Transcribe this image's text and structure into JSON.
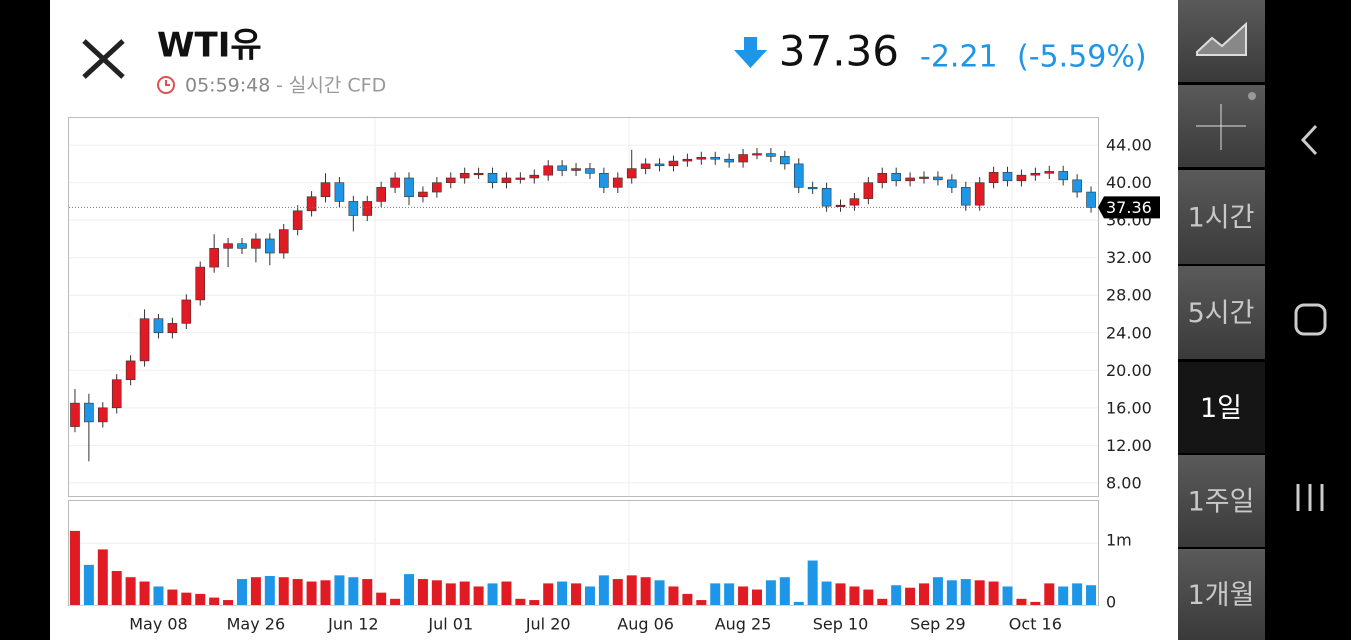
{
  "header": {
    "title": "WTI유",
    "time": "05:59:48",
    "source": "- 실시간 CFD",
    "change": "-2.21",
    "change_percent": "(-5.59%)"
  },
  "sidebar": {
    "intervals": [
      "1시간",
      "5시간",
      "1일",
      "1주일",
      "1개월"
    ]
  },
  "chart_data": {
    "type": "candlestick",
    "categories": [
      null,
      null,
      null,
      null,
      null,
      null,
      "May 08",
      null,
      null,
      null,
      null,
      null,
      null,
      "May 26",
      null,
      null,
      null,
      null,
      null,
      null,
      "Jun 12",
      null,
      null,
      null,
      null,
      null,
      null,
      "Jul 01",
      null,
      null,
      null,
      null,
      null,
      null,
      "Jul 20",
      null,
      null,
      null,
      null,
      null,
      null,
      "Aug 06",
      null,
      null,
      null,
      null,
      null,
      null,
      "Aug 25",
      null,
      null,
      null,
      null,
      null,
      null,
      "Sep 10",
      null,
      null,
      null,
      null,
      null,
      null,
      "Sep 29",
      null,
      null,
      null,
      null,
      null,
      null,
      "Oct 16",
      null,
      null,
      null,
      null
    ],
    "open": [
      14,
      16.5,
      14.5,
      16,
      19,
      21,
      25.5,
      24,
      25,
      27.5,
      31,
      33,
      33.5,
      33,
      34,
      32.5,
      35,
      37,
      38.5,
      40,
      38,
      36.5,
      38,
      39.5,
      40.5,
      38.5,
      39,
      40,
      40.5,
      41,
      41,
      40,
      40.5,
      40.5,
      40.8,
      41.8,
      41.3,
      41.5,
      41,
      39.5,
      40.5,
      41.5,
      42,
      41.8,
      42.3,
      42.5,
      42.7,
      42.5,
      42.2,
      43,
      43.1,
      42.8,
      42,
      39.5,
      39.4,
      37.5,
      37.6,
      38.3,
      40,
      41,
      40.2,
      40.5,
      40.6,
      40.3,
      39.5,
      37.6,
      40,
      41.1,
      40.2,
      40.8,
      41,
      41.2,
      40.3,
      39
    ],
    "high": [
      18,
      17.5,
      16.6,
      19.6,
      21.6,
      26.5,
      26,
      25.6,
      28.1,
      31.6,
      34.5,
      34.1,
      34.1,
      34.6,
      34.6,
      35.6,
      37.6,
      39.1,
      41,
      40.6,
      38.6,
      38.6,
      40.1,
      41.1,
      41.1,
      39.6,
      40.6,
      41.1,
      41.6,
      41.6,
      41.6,
      41.1,
      41.1,
      41.4,
      42.4,
      42.4,
      42.1,
      42.1,
      41.6,
      41.1,
      43.5,
      42.6,
      42.6,
      42.9,
      43.1,
      43.3,
      43.3,
      43.1,
      43.6,
      43.7,
      43.7,
      43.4,
      42.6,
      40.1,
      40,
      38.2,
      38.9,
      40.6,
      41.6,
      41.6,
      41.1,
      41.2,
      41.2,
      40.9,
      40.1,
      40.6,
      41.7,
      41.7,
      41.4,
      41.6,
      41.8,
      41.8,
      40.9,
      39.6
    ],
    "low": [
      13.4,
      10.3,
      13.9,
      15.4,
      18.4,
      20.4,
      23.4,
      23.4,
      24.4,
      26.9,
      30.4,
      31,
      32.4,
      31.5,
      31.2,
      31.9,
      34.4,
      36.4,
      37.9,
      37.4,
      34.8,
      35.9,
      37.4,
      38.9,
      37.6,
      37.9,
      38.4,
      39.4,
      39.9,
      40.4,
      39.4,
      39.4,
      39.9,
      39.9,
      40.2,
      40.7,
      40.7,
      40.4,
      38.9,
      38.9,
      39.9,
      40.9,
      41.2,
      41.2,
      41.7,
      41.9,
      41.9,
      41.6,
      41.6,
      42.5,
      42.2,
      41.4,
      38.9,
      38.8,
      36.9,
      36.9,
      37,
      37.7,
      39.4,
      39.6,
      39.6,
      39.9,
      39.7,
      38.9,
      37,
      37,
      39.4,
      39.6,
      39.6,
      40.2,
      40.4,
      39.7,
      38.4,
      36.8
    ],
    "close": [
      16.5,
      14.5,
      16,
      19,
      21,
      25.5,
      24,
      25,
      27.5,
      31,
      33,
      33.5,
      33,
      34,
      32.5,
      35,
      37,
      38.5,
      40,
      38,
      36.5,
      38,
      39.5,
      40.5,
      38.5,
      39,
      40,
      40.5,
      41,
      41,
      40,
      40.5,
      40.5,
      40.8,
      41.8,
      41.3,
      41.5,
      41,
      39.5,
      40.5,
      41.5,
      42,
      41.8,
      42.3,
      42.5,
      42.7,
      42.5,
      42.2,
      43,
      43.1,
      42.8,
      42,
      39.5,
      39.4,
      37.5,
      37.6,
      38.3,
      40,
      41,
      40.2,
      40.5,
      40.6,
      40.3,
      39.5,
      37.6,
      40,
      41.1,
      40.2,
      40.8,
      41,
      41.2,
      40.3,
      39,
      37.36
    ],
    "up_color": "#e01b24",
    "down_color": "#1e96e8",
    "ylim": [
      6.6,
      47
    ],
    "yticks": [
      {
        "value": 8,
        "label": "8.00"
      },
      {
        "value": 12,
        "label": "12.00"
      },
      {
        "value": 16,
        "label": "16.00"
      },
      {
        "value": 20,
        "label": "20.00"
      },
      {
        "value": 24,
        "label": "24.00"
      },
      {
        "value": 28,
        "label": "28.00"
      },
      {
        "value": 32,
        "label": "32.00"
      },
      {
        "value": 36,
        "label": "36.00"
      },
      {
        "value": 40,
        "label": "40.00"
      },
      {
        "value": 44,
        "label": "44.00"
      }
    ],
    "current_price": 37.36,
    "volume": {
      "type": "bar",
      "values": [
        1200000,
        650000,
        900000,
        550000,
        450000,
        380000,
        300000,
        250000,
        200000,
        180000,
        120000,
        80000,
        420000,
        450000,
        470000,
        450000,
        420000,
        380000,
        400000,
        480000,
        450000,
        420000,
        200000,
        100000,
        500000,
        420000,
        400000,
        350000,
        380000,
        300000,
        350000,
        380000,
        100000,
        80000,
        350000,
        380000,
        350000,
        300000,
        480000,
        420000,
        480000,
        450000,
        400000,
        300000,
        180000,
        80000,
        350000,
        350000,
        300000,
        250000,
        400000,
        450000,
        50000,
        720000,
        380000,
        350000,
        300000,
        250000,
        100000,
        320000,
        280000,
        350000,
        450000,
        400000,
        420000,
        400000,
        380000,
        300000,
        100000,
        50000,
        350000,
        300000,
        350000,
        320000
      ],
      "ylim": [
        0,
        1700000
      ],
      "yticks": [
        0,
        {
          "value": 1000000,
          "label": "1m"
        }
      ]
    }
  }
}
